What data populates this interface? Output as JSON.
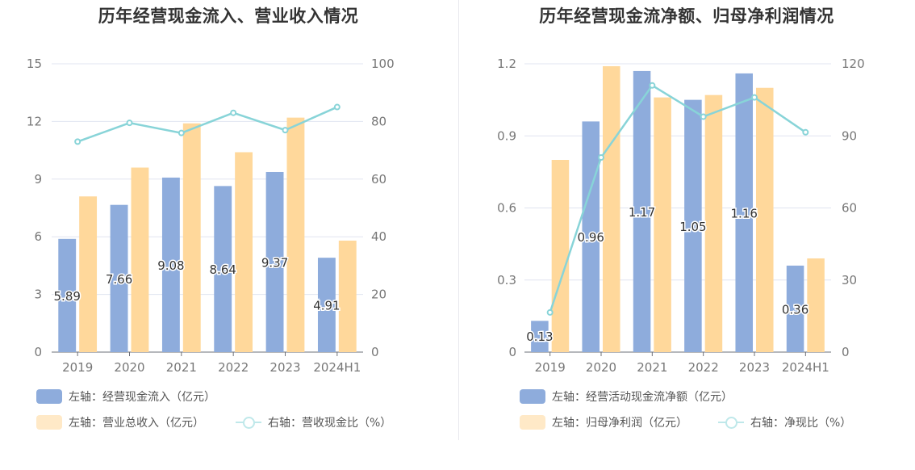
{
  "colors": {
    "bar_primary": "#8eacdc",
    "bar_secondary": "#ffd89b",
    "line": "#88d4d8",
    "grid": "#e0e4f0",
    "axis_text": "#777777",
    "title": "#333333"
  },
  "chart_data": [
    {
      "type": "bar",
      "title": "历年经营现金流入、营业收入情况",
      "categories": [
        "2019",
        "2020",
        "2021",
        "2022",
        "2023",
        "2024H1"
      ],
      "left_axis": {
        "ticks": [
          "0",
          "3",
          "6",
          "9",
          "12",
          "15"
        ],
        "ylim": [
          0,
          15
        ]
      },
      "right_axis": {
        "ticks": [
          "0",
          "20",
          "40",
          "60",
          "80",
          "100"
        ],
        "ylim": [
          0,
          100
        ]
      },
      "series": [
        {
          "name": "左轴：经营现金流入（亿元）",
          "kind": "bar",
          "axis": "left",
          "values": [
            5.89,
            7.66,
            9.08,
            8.64,
            9.37,
            4.91
          ],
          "labels": [
            "5.89",
            "7.66",
            "9.08",
            "8.64",
            "9.37",
            "4.91"
          ]
        },
        {
          "name": "左轴：营业总收入（亿元）",
          "kind": "bar",
          "axis": "left",
          "values": [
            8.1,
            9.6,
            11.9,
            10.4,
            12.2,
            5.8
          ]
        },
        {
          "name": "右轴：营收现金比（%）",
          "kind": "line",
          "axis": "right",
          "values": [
            73,
            79.5,
            76,
            83,
            77,
            85
          ]
        }
      ],
      "grid": true,
      "legend_position": "bottom-left"
    },
    {
      "type": "bar",
      "title": "历年经营现金流净额、归母净利润情况",
      "categories": [
        "2019",
        "2020",
        "2021",
        "2022",
        "2023",
        "2024H1"
      ],
      "left_axis": {
        "ticks": [
          "0",
          "0.3",
          "0.6",
          "0.9",
          "1.2"
        ],
        "ylim": [
          0,
          1.2
        ]
      },
      "right_axis": {
        "ticks": [
          "0",
          "30",
          "60",
          "90",
          "120"
        ],
        "ylim": [
          0,
          120
        ]
      },
      "series": [
        {
          "name": "左轴：经营活动现金流净额（亿元）",
          "kind": "bar",
          "axis": "left",
          "values": [
            0.13,
            0.96,
            1.17,
            1.05,
            1.16,
            0.36
          ],
          "labels": [
            "0.13",
            "0.96",
            "1.17",
            "1.05",
            "1.16",
            "0.36"
          ]
        },
        {
          "name": "左轴：归母净利润（亿元）",
          "kind": "bar",
          "axis": "left",
          "values": [
            0.8,
            1.19,
            1.06,
            1.07,
            1.1,
            0.39
          ]
        },
        {
          "name": "右轴：净现比（%）",
          "kind": "line",
          "axis": "right",
          "values": [
            16.5,
            81,
            111,
            98,
            106,
            91.5
          ]
        }
      ],
      "grid": true,
      "legend_position": "bottom-left"
    }
  ]
}
